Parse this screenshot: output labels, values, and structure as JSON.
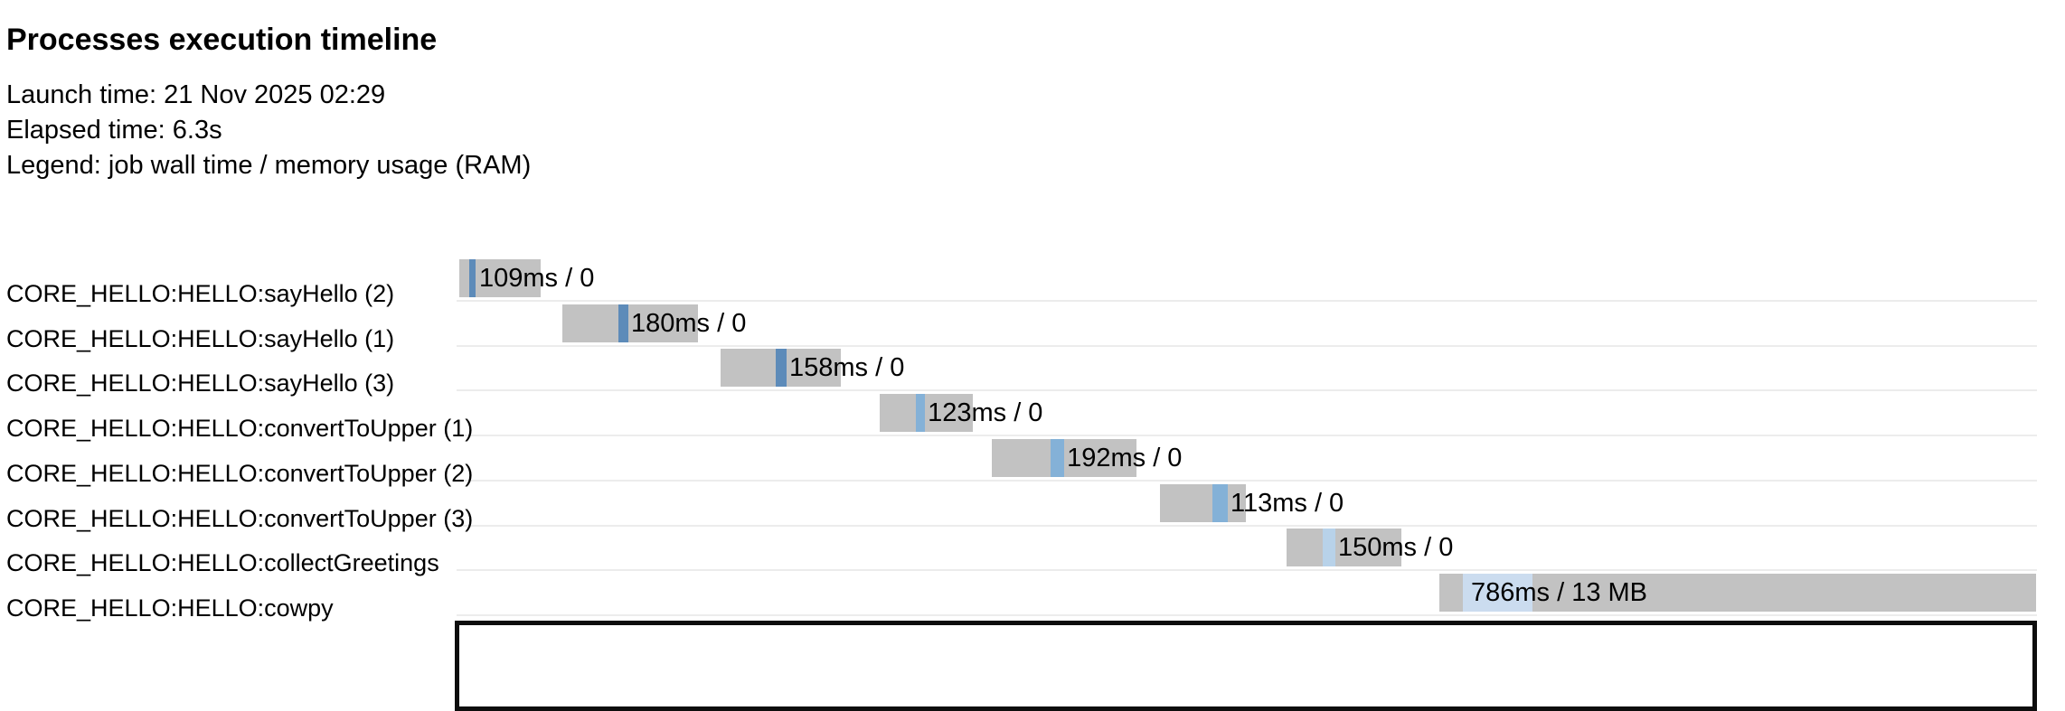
{
  "header": {
    "title": "Processes execution timeline",
    "launch": "Launch time: 21 Nov 2025 02:29",
    "elapsed": "Elapsed time: 6.3s",
    "legend": "Legend: job wall time / memory usage (RAM)"
  },
  "colors": {
    "bar_gray": "#c2c2c2",
    "separator": "#ececec",
    "text": "#000000",
    "panel_border": "#0d0d0d",
    "say_hello_blue": "#5d8bb9",
    "convert_to_upper_blue": "#84b1d7",
    "collect_greetings_blue": "#b8d2e9",
    "cowpy_blue": "#cbdcef"
  },
  "chart_data": {
    "type": "bar",
    "subtype": "gantt-timeline",
    "title": "Processes execution timeline",
    "launch_time": "21 Nov 2025 02:29",
    "elapsed_time": "6.3s",
    "legend_note": "job wall time / memory usage (RAM)",
    "x_axis": {
      "unit": "ms",
      "range_ms": [
        0,
        6300
      ],
      "ticks_visible": false,
      "grid": false
    },
    "legend_position": "none",
    "rows": [
      {
        "process": "CORE_HELLO:HELLO:sayHello (2)",
        "label": "109ms / 0",
        "wall_time": "109ms",
        "memory": "0",
        "approx_span_ms": [
          10,
          336
        ],
        "approx_run_ms": [
          50,
          76
        ],
        "bar_pct": [
          0.17,
          5.32
        ],
        "run_pct": [
          0.8,
          1.2
        ],
        "label_pct": 1.43,
        "run_color": "#5d8bb9"
      },
      {
        "process": "CORE_HELLO:HELLO:sayHello (1)",
        "label": "180ms / 0",
        "wall_time": "180ms",
        "memory": "0",
        "approx_span_ms": [
          422,
          963
        ],
        "approx_run_ms": [
          646,
          685
        ],
        "bar_pct": [
          6.69,
          15.27
        ],
        "run_pct": [
          10.24,
          10.87
        ],
        "label_pct": 11.04,
        "run_color": "#5d8bb9"
      },
      {
        "process": "CORE_HELLO:HELLO:sayHello (3)",
        "label": "158ms / 0",
        "wall_time": "158ms",
        "memory": "0",
        "approx_span_ms": [
          1053,
          1533
        ],
        "approx_run_ms": [
          1273,
          1317
        ],
        "bar_pct": [
          16.7,
          24.31
        ],
        "run_pct": [
          20.19,
          20.88
        ],
        "label_pct": 21.05,
        "run_color": "#5d8bb9"
      },
      {
        "process": "CORE_HELLO:HELLO:convertToUpper (1)",
        "label": "123ms / 0",
        "wall_time": "123ms",
        "memory": "0",
        "approx_span_ms": [
          1688,
          2060
        ],
        "approx_run_ms": [
          1832,
          1868
        ],
        "bar_pct": [
          26.77,
          32.67
        ],
        "run_pct": [
          29.06,
          29.63
        ],
        "label_pct": 29.81,
        "run_color": "#84b1d7"
      },
      {
        "process": "CORE_HELLO:HELLO:convertToUpper (2)",
        "label": "192ms / 0",
        "wall_time": "192ms",
        "memory": "0",
        "approx_span_ms": [
          2136,
          2713
        ],
        "approx_run_ms": [
          2370,
          2424
        ],
        "bar_pct": [
          33.87,
          43.02
        ],
        "run_pct": [
          37.58,
          38.44
        ],
        "label_pct": 38.62,
        "run_color": "#84b1d7"
      },
      {
        "process": "CORE_HELLO:HELLO:convertToUpper (3)",
        "label": "113ms / 0",
        "wall_time": "113ms",
        "memory": "0",
        "approx_span_ms": [
          2807,
          3150
        ],
        "approx_run_ms": [
          3016,
          3077
        ],
        "bar_pct": [
          44.51,
          49.94
        ],
        "run_pct": [
          47.83,
          48.8
        ],
        "label_pct": 48.97,
        "run_color": "#84b1d7"
      },
      {
        "process": "CORE_HELLO:HELLO:collectGreetings",
        "label": "150ms / 0",
        "wall_time": "150ms",
        "memory": "0",
        "approx_span_ms": [
          3312,
          3770
        ],
        "approx_run_ms": [
          3456,
          3506
        ],
        "bar_pct": [
          52.52,
          59.78
        ],
        "run_pct": [
          54.81,
          55.61
        ],
        "label_pct": 55.78,
        "run_color": "#b8d2e9"
      },
      {
        "process": "CORE_HELLO:HELLO:cowpy",
        "label": "786ms / 13 MB",
        "wall_time": "786ms",
        "memory": "13 MB",
        "approx_span_ms": [
          3921,
          6303
        ],
        "approx_run_ms": [
          4015,
          4293
        ],
        "bar_pct": [
          62.18,
          99.94
        ],
        "run_pct": [
          63.67,
          68.08
        ],
        "label_pct": 64.19,
        "run_color": "#cbdcef"
      }
    ]
  }
}
